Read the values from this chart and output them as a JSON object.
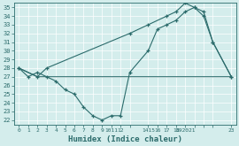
{
  "xlabel": "Humidex (Indice chaleur)",
  "bg_color": "#d4edec",
  "grid_color": "#ffffff",
  "line_color": "#2b6b6b",
  "xlim": [
    -0.5,
    23.5
  ],
  "ylim": [
    21.5,
    35.5
  ],
  "yticks": [
    22,
    23,
    24,
    25,
    26,
    27,
    28,
    29,
    30,
    31,
    32,
    33,
    34,
    35
  ],
  "xtick_positions": [
    0,
    1,
    2,
    3,
    4,
    5,
    6,
    7,
    8,
    9,
    10,
    11,
    12,
    14,
    15,
    16,
    17,
    18,
    19,
    20,
    21,
    23
  ],
  "xtick_labels": [
    "0",
    "1",
    "2",
    "3",
    "4",
    "5",
    "6",
    "7",
    "8",
    "9",
    "1011",
    "12",
    "",
    "1415",
    "16",
    "17",
    "18",
    "192021",
    "",
    "",
    "",
    "23"
  ],
  "line1_x": [
    0,
    1,
    2,
    3,
    4,
    5,
    6,
    7,
    8,
    9,
    10,
    11,
    12,
    14,
    15,
    16,
    17,
    18,
    19,
    20,
    21,
    23
  ],
  "line1_y": [
    28.0,
    27.0,
    27.5,
    27.0,
    26.5,
    25.5,
    25.0,
    23.5,
    22.5,
    22.0,
    22.5,
    22.5,
    27.5,
    30.0,
    32.5,
    33.0,
    33.5,
    34.5,
    35.0,
    34.0,
    31.0,
    27.0
  ],
  "line2_x": [
    0,
    2,
    3,
    14,
    16,
    17,
    18,
    19,
    20,
    21,
    23
  ],
  "line2_y": [
    28.0,
    27.0,
    27.0,
    27.0,
    27.0,
    27.0,
    27.0,
    27.0,
    27.0,
    27.0,
    27.0
  ],
  "line3_x": [
    0,
    2,
    3,
    12,
    14,
    16,
    17,
    18,
    19,
    20,
    21,
    23
  ],
  "line3_y": [
    28.0,
    27.0,
    28.0,
    32.0,
    33.0,
    34.0,
    34.5,
    35.5,
    35.0,
    34.5,
    31.0,
    27.0
  ]
}
